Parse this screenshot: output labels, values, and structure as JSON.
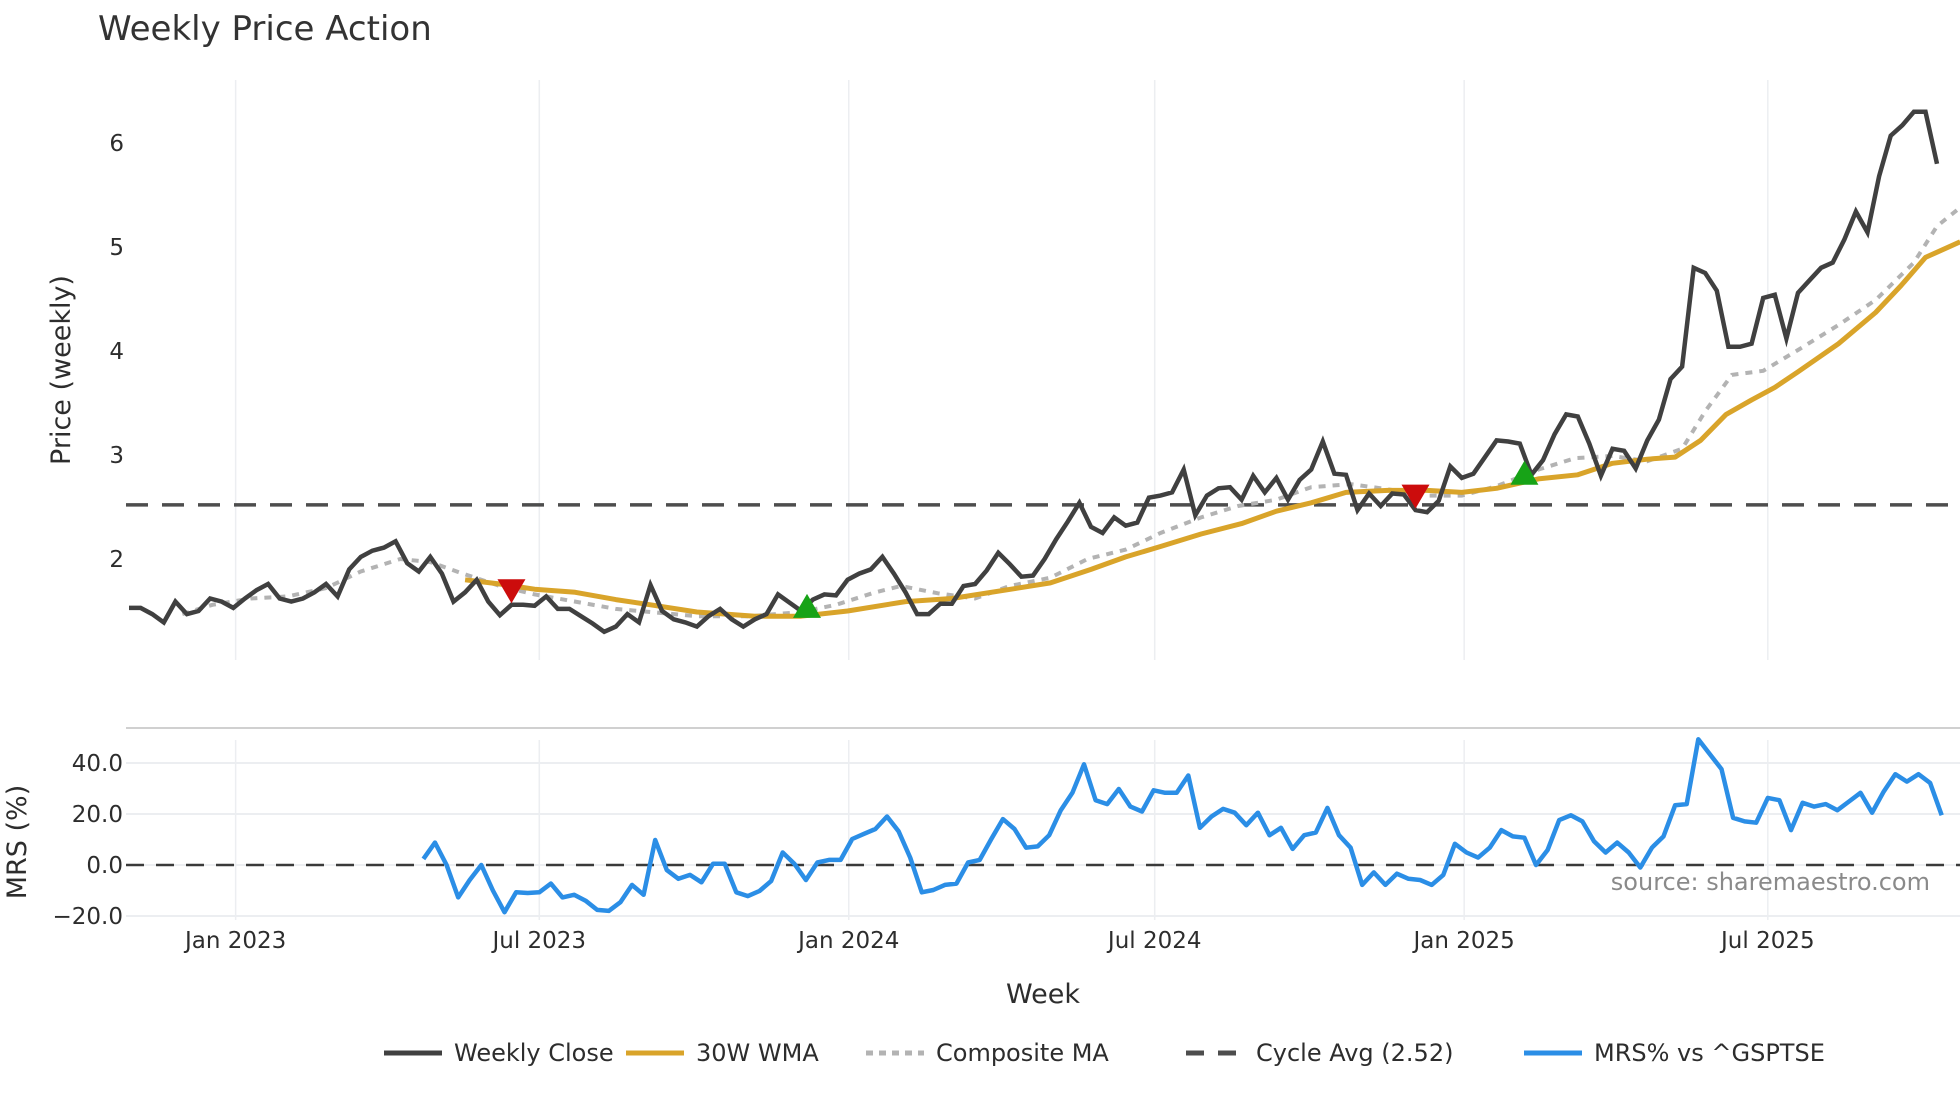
{
  "title": "Weekly Price Action",
  "watermark": "source: sharemaestro.com",
  "colors": {
    "close": "#404040",
    "wma": "#d9a42a",
    "composite": "#b3b3b3",
    "cycle_avg": "#4d4d4d",
    "mrs": "#2b8ee6",
    "buy_marker": "#17a317",
    "sell_marker": "#cc0c0c",
    "grid": "#eceef1",
    "separator": "#d0d0d0"
  },
  "legend": [
    {
      "key": "close",
      "label": "Weekly Close",
      "style": "solid"
    },
    {
      "key": "wma",
      "label": "30W WMA",
      "style": "solid"
    },
    {
      "key": "composite",
      "label": "Composite MA",
      "style": "dotted"
    },
    {
      "key": "cycle_avg",
      "label": "Cycle Avg (2.52)",
      "style": "dashed"
    },
    {
      "key": "mrs",
      "label": "MRS% vs ^GSPTSE",
      "style": "solid"
    }
  ],
  "chart_data": [
    {
      "type": "line",
      "title": "Weekly Price Action",
      "xlabel": "Week",
      "ylabel": "Price (weekly)",
      "x_ticks": [
        "Jan 2023",
        "Jul 2023",
        "Jan 2024",
        "Jul 2024",
        "Jan 2025",
        "Jul 2025"
      ],
      "x_tick_week_index": [
        9.2,
        35.4,
        62.1,
        88.5,
        115.2,
        141.4
      ],
      "y_ticks": [
        2,
        3,
        4,
        5,
        6
      ],
      "ylim": [
        1.0,
        6.6
      ],
      "grid": "vertical",
      "legend_position": "bottom",
      "cycle_avg": 2.52,
      "series": [
        {
          "name": "Weekly Close",
          "start_index": 0,
          "values": [
            1.53,
            1.53,
            1.47,
            1.39,
            1.59,
            1.47,
            1.5,
            1.62,
            1.59,
            1.53,
            1.62,
            1.7,
            1.76,
            1.62,
            1.59,
            1.62,
            1.68,
            1.76,
            1.64,
            1.9,
            2.02,
            2.08,
            2.11,
            2.17,
            1.96,
            1.88,
            2.02,
            1.86,
            1.59,
            1.68,
            1.8,
            1.59,
            1.46,
            1.56,
            1.56,
            1.55,
            1.64,
            1.52,
            1.52,
            1.45,
            1.38,
            1.3,
            1.35,
            1.47,
            1.39,
            1.75,
            1.5,
            1.42,
            1.39,
            1.35,
            1.45,
            1.52,
            1.42,
            1.35,
            1.42,
            1.47,
            1.66,
            1.58,
            1.5,
            1.61,
            1.66,
            1.65,
            1.8,
            1.86,
            1.9,
            2.02,
            1.86,
            1.68,
            1.47,
            1.47,
            1.57,
            1.57,
            1.74,
            1.76,
            1.89,
            2.06,
            1.95,
            1.83,
            1.84,
            2.0,
            2.19,
            2.36,
            2.54,
            2.31,
            2.25,
            2.4,
            2.32,
            2.35,
            2.59,
            2.61,
            2.64,
            2.86,
            2.42,
            2.61,
            2.68,
            2.69,
            2.57,
            2.8,
            2.64,
            2.78,
            2.57,
            2.76,
            2.86,
            3.13,
            2.82,
            2.81,
            2.47,
            2.63,
            2.51,
            2.63,
            2.62,
            2.47,
            2.45,
            2.56,
            2.89,
            2.78,
            2.82,
            2.98,
            3.14,
            3.13,
            3.11,
            2.81,
            2.95,
            3.2,
            3.39,
            3.37,
            3.11,
            2.8,
            3.06,
            3.04,
            2.87,
            3.14,
            3.34,
            3.73,
            3.85,
            4.8,
            4.75,
            4.58,
            4.04,
            4.04,
            4.07,
            4.51,
            4.54,
            4.12,
            4.56,
            4.68,
            4.8,
            4.85,
            5.07,
            5.34,
            5.14,
            5.68,
            6.07,
            6.17,
            6.3,
            6.3,
            5.8
          ]
        },
        {
          "name": "30W WMA",
          "points": [
            [
              29,
              1.8
            ],
            [
              32,
              1.76
            ],
            [
              35,
              1.71
            ],
            [
              38.5,
              1.68
            ],
            [
              42,
              1.61
            ],
            [
              45,
              1.56
            ],
            [
              49,
              1.49
            ],
            [
              54,
              1.45
            ],
            [
              58,
              1.45
            ],
            [
              62,
              1.5
            ],
            [
              67,
              1.59
            ],
            [
              71,
              1.62
            ],
            [
              75,
              1.69
            ],
            [
              79.5,
              1.77
            ],
            [
              83,
              1.9
            ],
            [
              86,
              2.02
            ],
            [
              89,
              2.12
            ],
            [
              92.5,
              2.24
            ],
            [
              96,
              2.34
            ],
            [
              99,
              2.46
            ],
            [
              102,
              2.54
            ],
            [
              105,
              2.64
            ],
            [
              108.6,
              2.66
            ],
            [
              112,
              2.66
            ],
            [
              115,
              2.64
            ],
            [
              118,
              2.68
            ],
            [
              121.6,
              2.77
            ],
            [
              125,
              2.81
            ],
            [
              128,
              2.92
            ],
            [
              131,
              2.96
            ],
            [
              133.4,
              2.98
            ],
            [
              135.6,
              3.14
            ],
            [
              137.8,
              3.39
            ],
            [
              140,
              3.53
            ],
            [
              142,
              3.65
            ],
            [
              144,
              3.8
            ],
            [
              147.5,
              4.07
            ],
            [
              150.7,
              4.37
            ],
            [
              152.9,
              4.63
            ],
            [
              155,
              4.9
            ],
            [
              158,
              5.05
            ]
          ]
        },
        {
          "name": "Composite MA",
          "points": [
            [
              4.6,
              1.47
            ],
            [
              7.2,
              1.56
            ],
            [
              10.5,
              1.62
            ],
            [
              13.7,
              1.64
            ],
            [
              17,
              1.72
            ],
            [
              20,
              1.88
            ],
            [
              23.4,
              2.0
            ],
            [
              26,
              1.97
            ],
            [
              28.8,
              1.86
            ],
            [
              32,
              1.74
            ],
            [
              35,
              1.66
            ],
            [
              38.5,
              1.59
            ],
            [
              42,
              1.52
            ],
            [
              45,
              1.49
            ],
            [
              49,
              1.45
            ],
            [
              53.6,
              1.45
            ],
            [
              58,
              1.49
            ],
            [
              61,
              1.56
            ],
            [
              64.4,
              1.68
            ],
            [
              66.6,
              1.74
            ],
            [
              69.8,
              1.67
            ],
            [
              73,
              1.62
            ],
            [
              76,
              1.74
            ],
            [
              79.5,
              1.82
            ],
            [
              82.7,
              2.0
            ],
            [
              86,
              2.09
            ],
            [
              89,
              2.25
            ],
            [
              92.5,
              2.4
            ],
            [
              95.7,
              2.51
            ],
            [
              99,
              2.57
            ],
            [
              102,
              2.69
            ],
            [
              105.4,
              2.72
            ],
            [
              108.6,
              2.67
            ],
            [
              112,
              2.61
            ],
            [
              115,
              2.61
            ],
            [
              118,
              2.7
            ],
            [
              121.6,
              2.86
            ],
            [
              124.8,
              2.97
            ],
            [
              128,
              2.99
            ],
            [
              131,
              2.94
            ],
            [
              134,
              3.06
            ],
            [
              136,
              3.42
            ],
            [
              138.3,
              3.77
            ],
            [
              141,
              3.81
            ],
            [
              144,
              4.01
            ],
            [
              147.5,
              4.25
            ],
            [
              150.7,
              4.49
            ],
            [
              154,
              4.85
            ],
            [
              156,
              5.2
            ],
            [
              158,
              5.38
            ]
          ]
        },
        {
          "name": "Cycle Avg (2.52)",
          "constant": 2.52
        }
      ],
      "signals": [
        {
          "type": "sell",
          "index": 33,
          "price": 1.69
        },
        {
          "type": "buy",
          "index": 58.5,
          "price": 1.53
        },
        {
          "type": "sell",
          "index": 111,
          "price": 2.6
        },
        {
          "type": "buy",
          "index": 120.4,
          "price": 2.81
        }
      ]
    },
    {
      "type": "line",
      "ylabel": "MRS (%)",
      "xlabel": "Week",
      "y_ticks": [
        "40.0",
        "20.0",
        "0.0",
        "−20.0"
      ],
      "y_tick_values": [
        40,
        20,
        0,
        -20
      ],
      "ylim": [
        -22,
        56
      ],
      "zero_line": 0,
      "series": [
        {
          "name": "MRS% vs ^GSPTSE",
          "start_index": 25.4,
          "values": [
            2.4,
            8.8,
            0,
            -12.7,
            -5.9,
            0,
            -10,
            -18.5,
            -10.7,
            -11,
            -10.7,
            -7.3,
            -12.7,
            -11.7,
            -14,
            -17.6,
            -18,
            -14.6,
            -7.8,
            -11.7,
            9.8,
            -2,
            -5.4,
            -3.9,
            -6.8,
            0.5,
            0.5,
            -10.7,
            -12.2,
            -10.2,
            -6.3,
            4.9,
            0.5,
            -5.9,
            1,
            2,
            2,
            10.2,
            12.2,
            14.1,
            19,
            13.2,
            2.9,
            -10.7,
            -9.8,
            -7.8,
            -7.3,
            1,
            2,
            10.2,
            18,
            14.1,
            6.8,
            7.3,
            11.7,
            21.5,
            28.3,
            39.5,
            25.4,
            23.9,
            29.8,
            22.9,
            21,
            29.3,
            28.3,
            28.3,
            35.1,
            14.6,
            19,
            22,
            20.5,
            15.6,
            20.5,
            11.7,
            14.6,
            6.3,
            11.7,
            12.7,
            22.4,
            11.7,
            6.8,
            -7.8,
            -2.9,
            -7.8,
            -3.4,
            -5.4,
            -5.9,
            -7.8,
            -3.9,
            8.3,
            4.9,
            2.9,
            6.8,
            13.7,
            11.2,
            10.7,
            0,
            5.9,
            17.6,
            19.5,
            17.1,
            9.3,
            4.9,
            8.8,
            4.9,
            -1,
            6.8,
            11.2,
            23.4,
            23.9,
            49.3,
            43.4,
            37.6,
            18.5,
            17.1,
            16.6,
            26.3,
            25.4,
            13.7,
            24.4,
            22.9,
            23.9,
            21.5,
            24.9,
            28.3,
            20.5,
            28.8,
            35.6,
            32.7,
            35.6,
            32.2,
            19.5
          ]
        }
      ]
    }
  ]
}
